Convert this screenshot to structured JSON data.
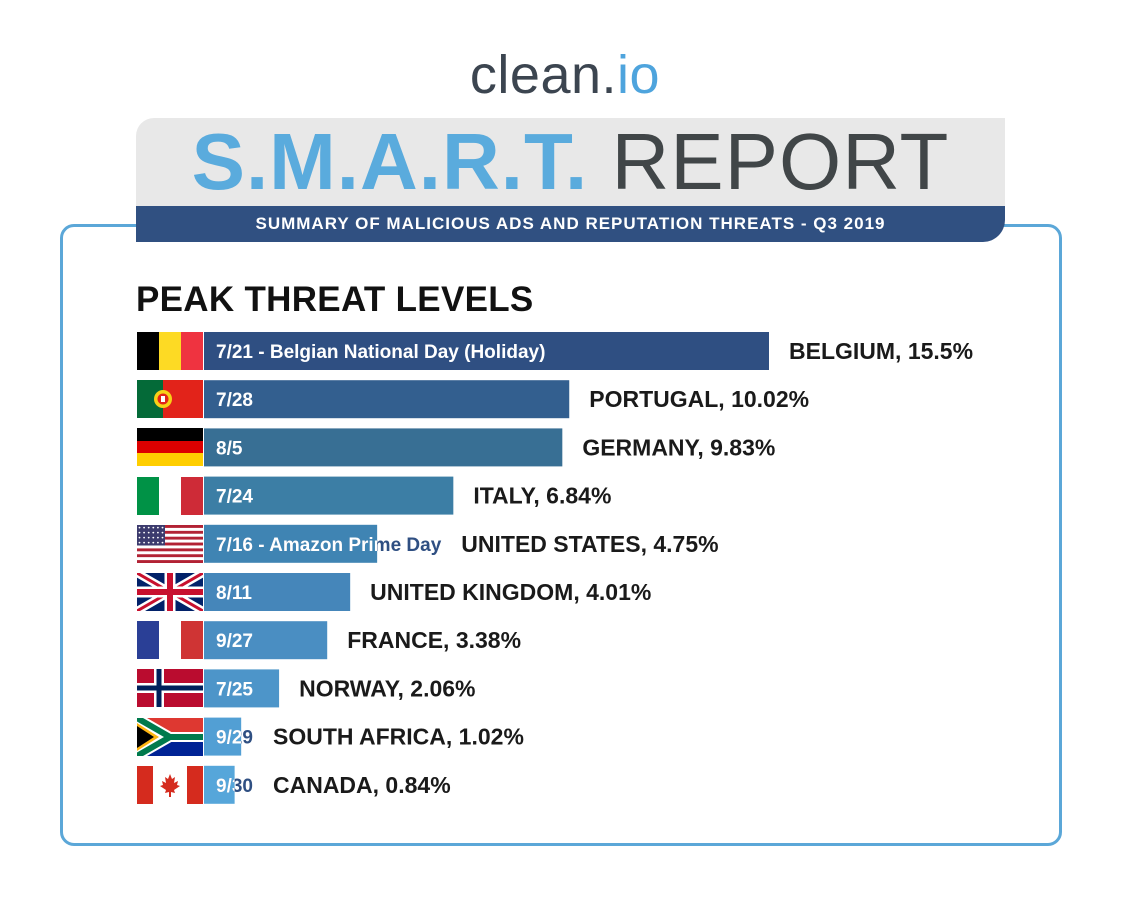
{
  "logo": {
    "part1": "clean.",
    "part2": "io"
  },
  "banner": {
    "title_part1": "S.M.A.R.T.",
    "title_part2": " REPORT"
  },
  "subtitle": "SUMMARY OF MALICIOUS ADS AND REPUTATION THREATS - Q3 2019",
  "chart_data": {
    "type": "bar",
    "orientation": "horizontal",
    "title": "PEAK THREAT LEVELS",
    "unit": "%",
    "xlim": [
      0,
      15.5
    ],
    "grid": false,
    "legend": "none",
    "categories": [
      "BELGIUM",
      "PORTUGAL",
      "GERMANY",
      "ITALY",
      "UNITED STATES",
      "UNITED KINGDOM",
      "FRANCE",
      "NORWAY",
      "SOUTH AFRICA",
      "CANADA"
    ],
    "values": [
      15.5,
      10.02,
      9.83,
      6.84,
      4.75,
      4.01,
      3.38,
      2.06,
      1.02,
      0.84
    ],
    "bar_labels": [
      "7/21 - Belgian National Day (Holiday)",
      "7/28",
      "8/5",
      "7/24",
      "7/16 - Amazon Prime Day",
      "8/11",
      "9/27",
      "7/25",
      "9/29",
      "9/30"
    ],
    "value_labels": [
      "BELGIUM, 15.5%",
      "PORTUGAL, 10.02%",
      "GERMANY, 9.83%",
      "ITALY, 6.84%",
      "UNITED STATES, 4.75%",
      "UNITED KINGDOM, 4.01%",
      "FRANCE, 3.38%",
      "NORWAY, 2.06%",
      "SOUTH AFRICA, 1.02%",
      "CANADA, 0.84%"
    ],
    "flags": [
      "belgium-flag-icon",
      "portugal-flag-icon",
      "germany-flag-icon",
      "italy-flag-icon",
      "us-flag-icon",
      "uk-flag-icon",
      "france-flag-icon",
      "norway-flag-icon",
      "south-africa-flag-icon",
      "canada-flag-icon"
    ],
    "colors": [
      "#2f4f82",
      "#335f8f",
      "#386f94",
      "#3c7ea5",
      "#3f84b3",
      "#4586ba",
      "#4a8ec2",
      "#4d95c9",
      "#529fd4",
      "#56a6da"
    ]
  }
}
